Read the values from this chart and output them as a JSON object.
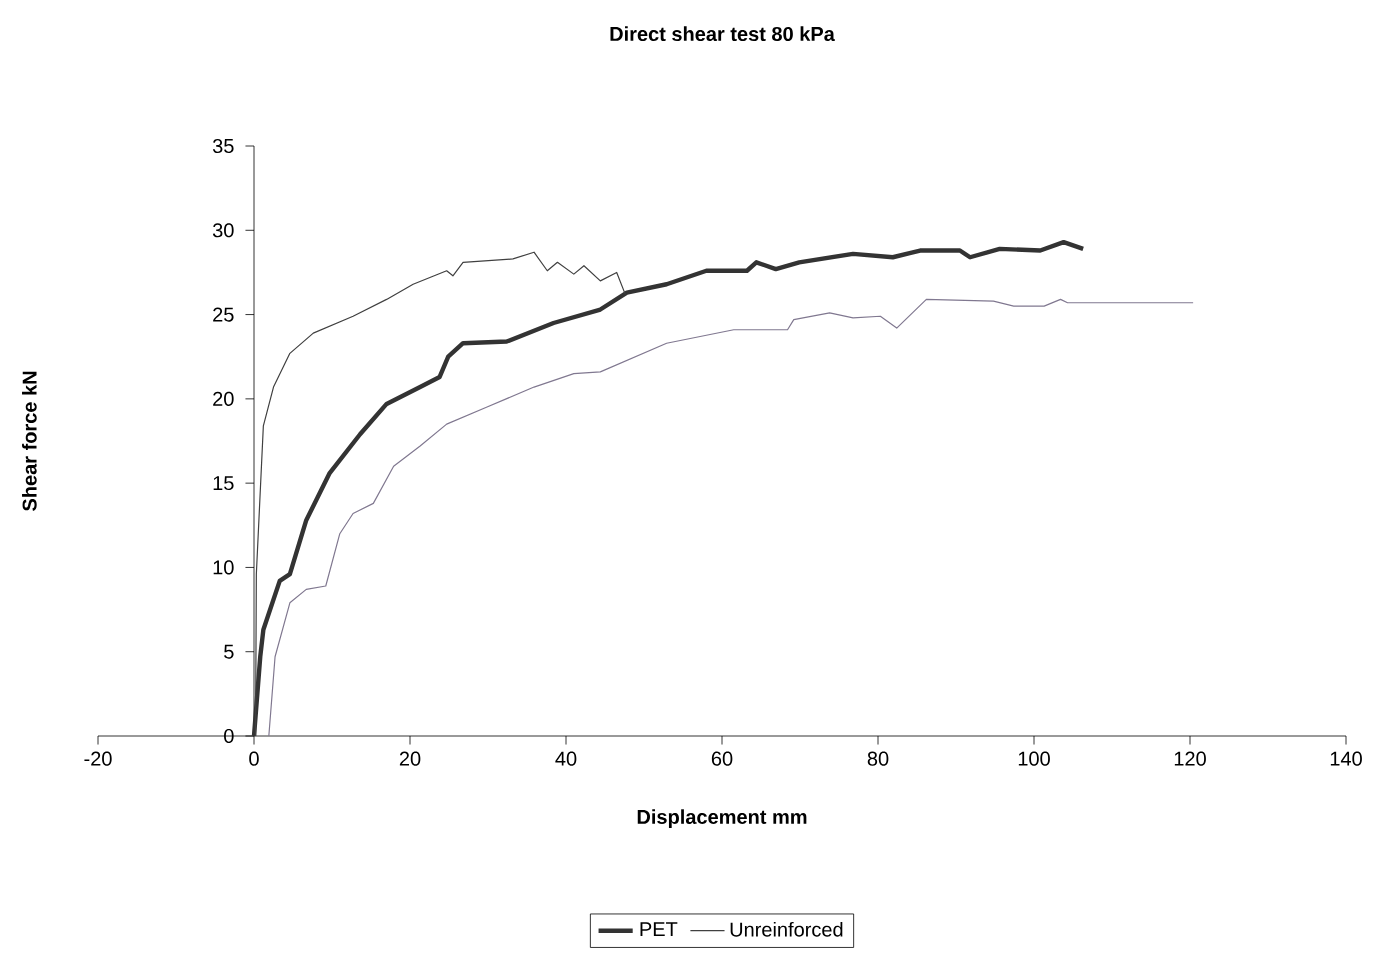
{
  "chart_data": {
    "type": "line",
    "title": "Direct shear test 80 kPa",
    "xlabel": "Displacement mm",
    "ylabel": "Shear force kN",
    "xlim": [
      -20,
      140
    ],
    "xticks": [
      -20,
      0,
      20,
      40,
      60,
      80,
      100,
      120,
      140
    ],
    "ylim": [
      0,
      35
    ],
    "yticks": [
      0,
      5,
      10,
      15,
      20,
      25,
      30,
      35
    ],
    "grid": false,
    "legend": "bottom",
    "marker": "none",
    "line_style": "solid",
    "series": [
      {
        "name": "PET",
        "color": "#333333",
        "x": [
          0,
          0.8,
          1.2,
          3.3,
          4.6,
          6.7,
          9.7,
          13.6,
          17.0,
          21.3,
          23.8,
          24.9,
          26.8,
          32.4,
          38.4,
          44.4,
          47.8,
          52.9,
          58.0,
          63.2,
          64.4,
          66.9,
          69.9,
          76.8,
          81.9,
          85.4,
          90.5,
          91.8,
          95.6,
          100.8,
          103.8,
          106.3
        ],
        "values": [
          0,
          4.7,
          6.3,
          9.2,
          9.6,
          12.8,
          15.6,
          17.9,
          19.7,
          20.7,
          21.3,
          22.5,
          23.3,
          23.4,
          24.5,
          25.3,
          26.3,
          26.8,
          27.6,
          27.6,
          28.1,
          27.7,
          28.1,
          28.6,
          28.4,
          28.8,
          28.8,
          28.4,
          28.9,
          28.8,
          29.3,
          28.9
        ]
      },
      {
        "color": "#807890",
        "x": [
          1.9,
          2.7,
          4.6,
          6.7,
          9.2,
          11.0,
          12.7,
          15.3,
          17.9,
          21.3,
          24.7,
          29.8,
          35.9,
          41.0,
          44.4,
          52.9,
          61.5,
          68.4,
          69.2,
          73.8,
          76.8,
          80.3,
          82.4,
          86.2,
          94.8,
          97.4,
          101.3,
          103.4,
          104.3,
          120.4
        ],
        "values": [
          0,
          4.7,
          7.9,
          8.7,
          8.9,
          12.0,
          13.2,
          13.8,
          16.0,
          17.2,
          18.5,
          19.5,
          20.7,
          21.5,
          21.6,
          23.3,
          24.1,
          24.1,
          24.7,
          25.1,
          24.8,
          24.9,
          24.2,
          25.9,
          25.8,
          25.5,
          25.5,
          25.9,
          25.7,
          25.7
        ]
      },
      {
        "name": "Unreinforced",
        "color": "#404040",
        "x": [
          0.2,
          0.3,
          1.2,
          2.5,
          4.6,
          7.6,
          12.7,
          17.0,
          20.4,
          24.7,
          25.5,
          26.8,
          33.2,
          35.9,
          37.6,
          38.9,
          41.0,
          42.3,
          44.4,
          46.5,
          47.6
        ],
        "values": [
          0,
          9.6,
          18.4,
          20.7,
          22.7,
          23.9,
          24.9,
          25.9,
          26.8,
          27.6,
          27.3,
          28.1,
          28.3,
          28.7,
          27.6,
          28.1,
          27.4,
          27.9,
          27.0,
          27.5,
          26.2
        ]
      }
    ]
  }
}
